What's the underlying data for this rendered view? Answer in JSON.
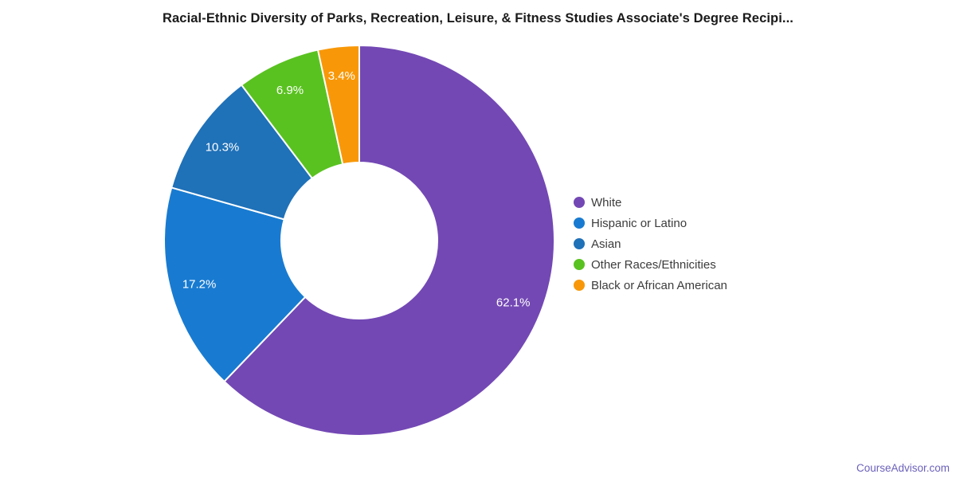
{
  "title": "Racial-Ethnic Diversity of Parks, Recreation, Leisure, & Fitness Studies Associate's Degree Recipi...",
  "footer": {
    "link_label": "CourseAdvisor.com",
    "link_color": "#6b61ba"
  },
  "chart_data": {
    "type": "pie",
    "subtype": "donut",
    "title": "Racial-Ethnic Diversity of Parks, Recreation, Leisure, & Fitness Studies Associate's Degree Recipi...",
    "legend_position": "right",
    "direction": "clockwise",
    "start_angle_deg": 0,
    "donut_hole_ratio": 0.4,
    "slice_label_color": "#ffffff",
    "slice_border_color": "#ffffff",
    "series": [
      {
        "name": "White",
        "value": 62.1,
        "label": "62.1%",
        "color": "#7348b4"
      },
      {
        "name": "Hispanic or Latino",
        "value": 17.2,
        "label": "17.2%",
        "color": "#187bd1"
      },
      {
        "name": "Asian",
        "value": 10.3,
        "label": "10.3%",
        "color": "#1f71b8"
      },
      {
        "name": "Other Races/Ethnicities",
        "value": 6.9,
        "label": "6.9%",
        "color": "#5ac220"
      },
      {
        "name": "Black or African American",
        "value": 3.4,
        "label": "3.4%",
        "color": "#f89808"
      }
    ]
  }
}
